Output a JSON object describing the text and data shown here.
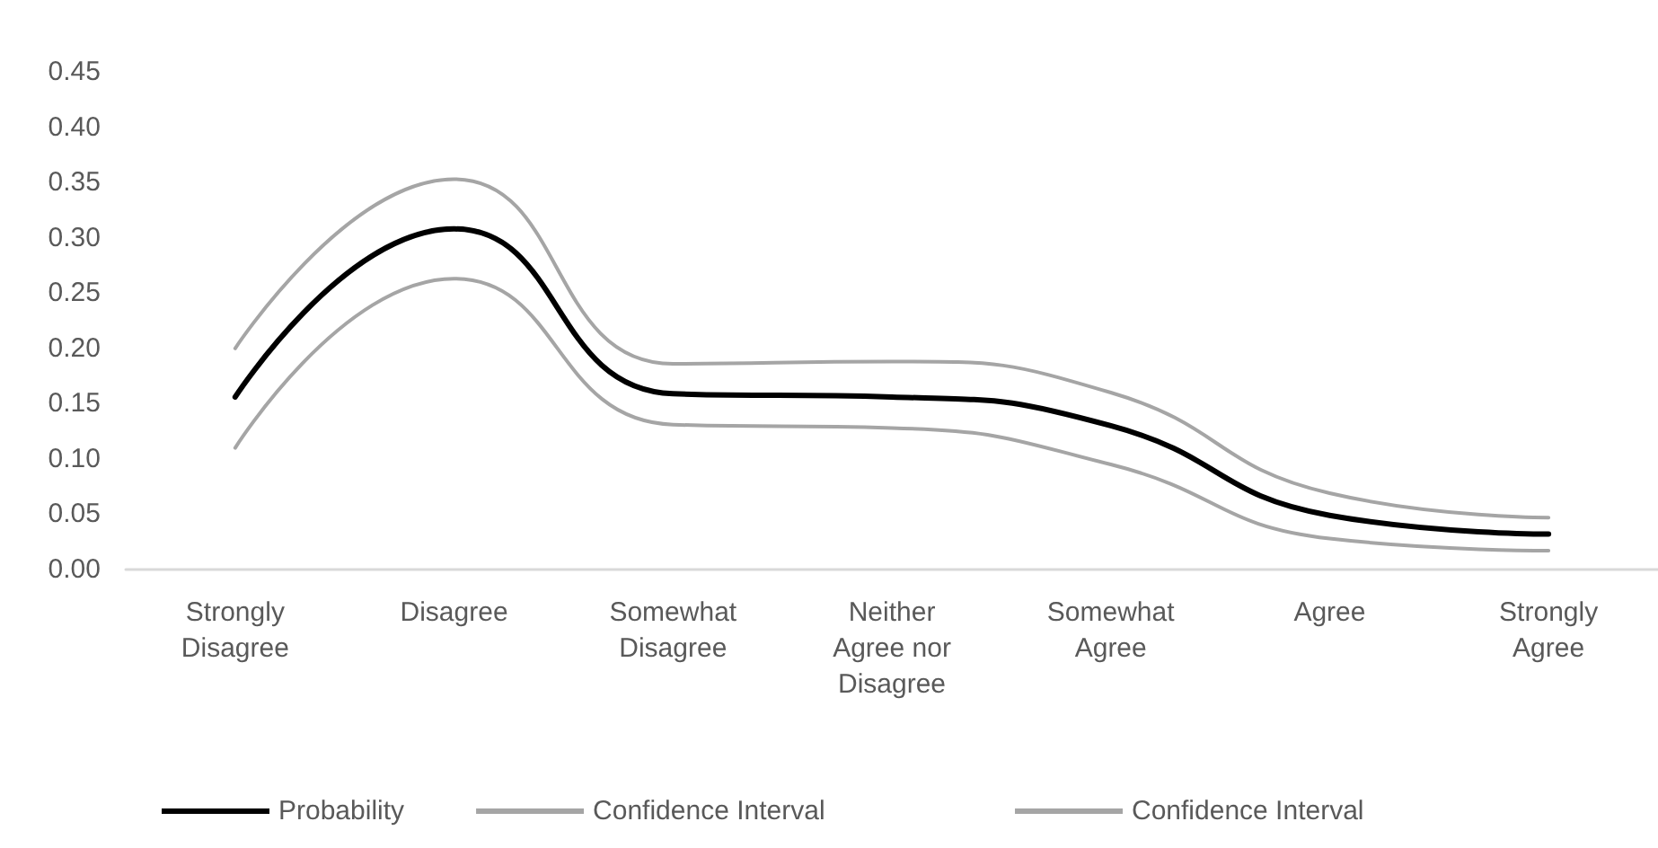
{
  "chart_data": {
    "type": "line",
    "categories": [
      "Strongly\nDisagree",
      "Disagree",
      "Somewhat\nDisagree",
      "Neither\nAgree nor\nDisagree",
      "Somewhat\nAgree",
      "Agree",
      "Strongly\nAgree"
    ],
    "series": [
      {
        "name": "Probability",
        "color": "#000000",
        "values": [
          0.156,
          0.308,
          0.159,
          0.156,
          0.13,
          0.049,
          0.032
        ]
      },
      {
        "name": "Confidence Interval",
        "color": "#a5a5a5",
        "values": [
          0.2,
          0.353,
          0.186,
          0.188,
          0.16,
          0.069,
          0.047
        ]
      },
      {
        "name": "Confidence Interval",
        "color": "#a5a5a5",
        "values": [
          0.11,
          0.263,
          0.131,
          0.128,
          0.095,
          0.028,
          0.017
        ]
      }
    ],
    "ylim": [
      0,
      0.45
    ],
    "yticks": [
      {
        "value": 0,
        "label": "0.00"
      },
      {
        "value": 0.05,
        "label": "0.05"
      },
      {
        "value": 0.1,
        "label": "0.10"
      },
      {
        "value": 0.15,
        "label": "0.15"
      },
      {
        "value": 0.2,
        "label": "0.20"
      },
      {
        "value": 0.25,
        "label": "0.25"
      },
      {
        "value": 0.3,
        "label": "0.30"
      },
      {
        "value": 0.35,
        "label": "0.35"
      },
      {
        "value": 0.4,
        "label": "0.40"
      },
      {
        "value": 0.45,
        "label": "0.45"
      }
    ],
    "grid": false,
    "legend": "bottom",
    "marker": "none",
    "line_style": "solid"
  }
}
